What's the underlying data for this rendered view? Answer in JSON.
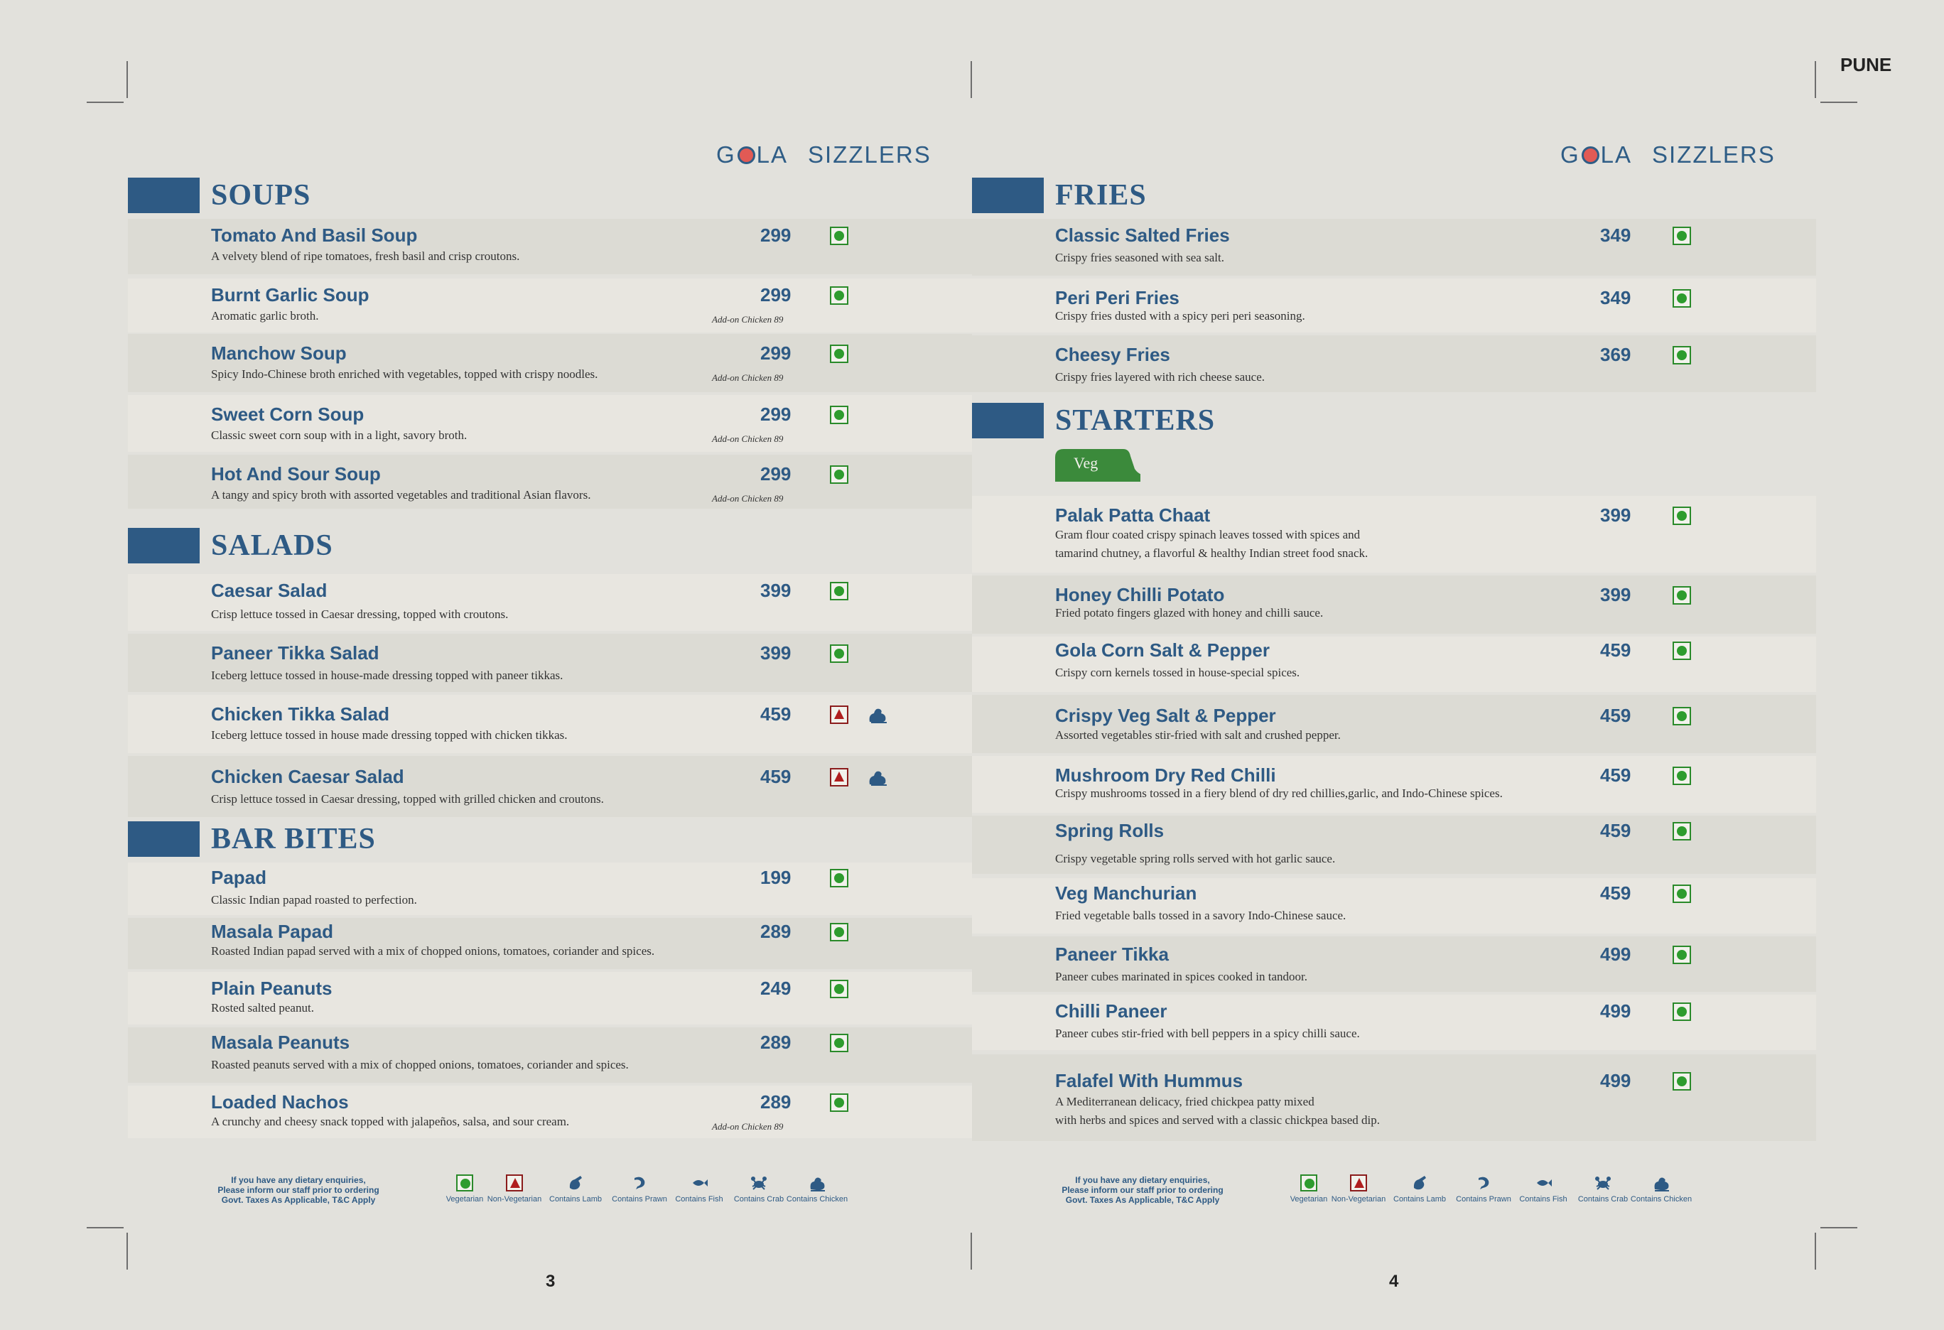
{
  "header": {
    "city": "PUNE"
  },
  "brand": {
    "logo_word1": "GOLA",
    "logo_word2": "SIZZLERS"
  },
  "left": {
    "page_number": "3",
    "soups": {
      "title": "SOUPS",
      "items": [
        {
          "name": "Tomato And Basil Soup",
          "desc": "A velvety blend of ripe tomatoes, fresh basil and crisp croutons.",
          "price": "299",
          "addon": ""
        },
        {
          "name": "Burnt Garlic Soup",
          "desc": "Aromatic garlic broth.",
          "price": "299",
          "addon": "Add-on Chicken 89"
        },
        {
          "name": "Manchow Soup",
          "desc": "Spicy Indo-Chinese broth enriched with vegetables, topped with crispy noodles.",
          "price": "299",
          "addon": "Add-on Chicken 89"
        },
        {
          "name": "Sweet Corn Soup",
          "desc": "Classic sweet corn soup with in a light, savory broth.",
          "price": "299",
          "addon": "Add-on Chicken 89"
        },
        {
          "name": "Hot And Sour Soup",
          "desc": "A tangy and spicy broth with assorted vegetables and traditional Asian flavors.",
          "price": "299",
          "addon": "Add-on Chicken 89"
        }
      ]
    },
    "salads": {
      "title": "SALADS",
      "items": [
        {
          "name": "Caesar Salad",
          "desc": "Crisp lettuce tossed in Caesar dressing, topped with croutons.",
          "price": "399"
        },
        {
          "name": "Paneer Tikka Salad",
          "desc": "Iceberg lettuce tossed in house-made dressing topped with paneer tikkas.",
          "price": "399"
        },
        {
          "name": "Chicken Tikka Salad",
          "desc": "Iceberg lettuce tossed in house made dressing topped with chicken tikkas.",
          "price": "459"
        },
        {
          "name": "Chicken Caesar Salad",
          "desc": "Crisp lettuce tossed in Caesar dressing, topped with grilled chicken and croutons.",
          "price": "459"
        }
      ]
    },
    "bar_bites": {
      "title": "BAR BITES",
      "items": [
        {
          "name": "Papad",
          "desc": "Classic Indian papad roasted to perfection.",
          "price": "199",
          "addon": ""
        },
        {
          "name": "Masala Papad",
          "desc": "Roasted Indian papad served with a mix of chopped onions, tomatoes, coriander and spices.",
          "price": "289",
          "addon": ""
        },
        {
          "name": "Plain Peanuts",
          "desc": "Rosted salted peanut.",
          "price": "249",
          "addon": ""
        },
        {
          "name": "Masala Peanuts",
          "desc": "Roasted peanuts served with a mix of chopped onions, tomatoes, coriander and spices.",
          "price": "289",
          "addon": ""
        },
        {
          "name": "Loaded Nachos",
          "desc": "A crunchy and cheesy snack topped with jalapeños, salsa, and sour cream.",
          "price": "289",
          "addon": "Add-on Chicken 89"
        }
      ]
    }
  },
  "right": {
    "page_number": "4",
    "fries": {
      "title": "FRIES",
      "items": [
        {
          "name": "Classic Salted Fries",
          "desc": "Crispy fries seasoned with sea salt.",
          "price": "349"
        },
        {
          "name": "Peri Peri Fries",
          "desc": "Crispy fries dusted with a spicy peri peri seasoning.",
          "price": "349"
        },
        {
          "name": "Cheesy Fries",
          "desc": "Crispy fries layered with rich cheese sauce.",
          "price": "369"
        }
      ]
    },
    "starters": {
      "title": "STARTERS",
      "tab": "Veg",
      "items": [
        {
          "name": "Palak Patta Chaat",
          "desc": "Gram flour coated crispy spinach leaves tossed with spices and",
          "desc2": "tamarind chutney, a flavorful & healthy Indian street food snack.",
          "price": "399"
        },
        {
          "name": "Honey Chilli Potato",
          "desc": "Fried potato fingers glazed with honey and chilli sauce.",
          "desc2": "",
          "price": "399"
        },
        {
          "name": "Gola Corn Salt & Pepper",
          "desc": "Crispy corn kernels tossed in house-special spices.",
          "desc2": "",
          "price": "459"
        },
        {
          "name": "Crispy Veg Salt & Pepper",
          "desc": "Assorted vegetables stir-fried with salt and  crushed pepper.",
          "desc2": "",
          "price": "459"
        },
        {
          "name": "Mushroom Dry Red Chilli",
          "desc": "Crispy mushrooms tossed in a fiery blend of dry red chillies,garlic, and Indo-Chinese spices.",
          "desc2": "",
          "price": "459"
        },
        {
          "name": "Spring Rolls",
          "desc": "Crispy vegetable spring rolls served with hot garlic sauce.",
          "desc2": "",
          "price": "459"
        },
        {
          "name": "Veg Manchurian",
          "desc": "Fried vegetable balls tossed in a savory Indo-Chinese sauce.",
          "desc2": "",
          "price": "459"
        },
        {
          "name": "Paneer Tikka",
          "desc": "Paneer cubes marinated in spices cooked in tandoor.",
          "desc2": "",
          "price": "499"
        },
        {
          "name": "Chilli Paneer",
          "desc": "Paneer cubes stir-fried with bell peppers in a spicy chilli sauce.",
          "desc2": "",
          "price": "499"
        },
        {
          "name": "Falafel With Hummus",
          "desc": "A Mediterranean delicacy, fried chickpea patty mixed",
          "desc2": "with herbs and spices and served with a classic chickpea based dip.",
          "price": "499"
        }
      ]
    }
  },
  "footer": {
    "note_line1": "If you have any dietary enquiries,",
    "note_line2": "Please inform our staff prior to ordering",
    "note_line3": "Govt. Taxes As Applicable, T&C Apply",
    "legend": [
      "Vegetarian",
      "Non-Vegetarian",
      "Contains Lamb",
      "Contains Prawn",
      "Contains Fish",
      "Contains Crab",
      "Contains Chicken"
    ]
  },
  "colors": {
    "brand_blue": "#2e5a84",
    "veg_green": "#2e9c2e",
    "nonveg_red": "#b01e1e",
    "tab_green": "#3b8a3b"
  }
}
